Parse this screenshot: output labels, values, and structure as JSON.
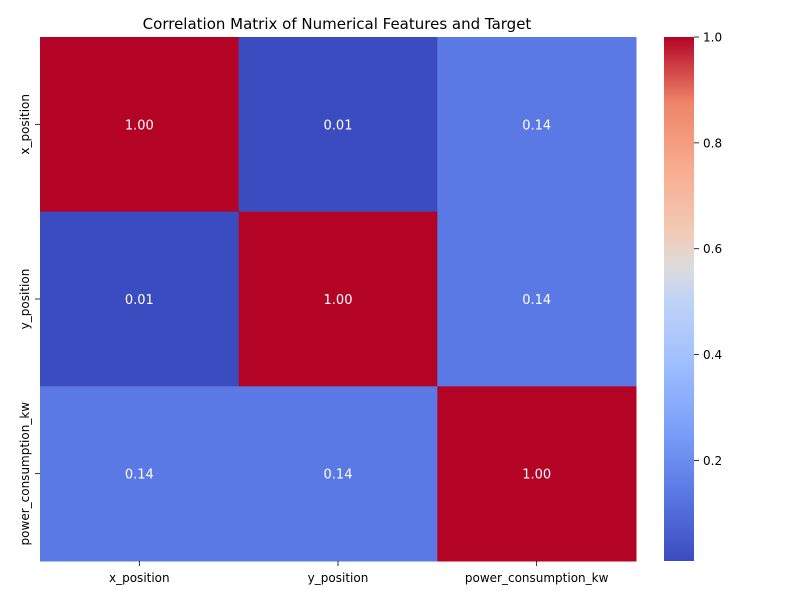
{
  "chart_data": {
    "type": "heatmap",
    "title": "Correlation Matrix of Numerical Features and Target",
    "xlabel": "",
    "ylabel": "",
    "x_categories": [
      "x_position",
      "y_position",
      "power_consumption_kw"
    ],
    "y_categories": [
      "x_position",
      "y_position",
      "power_consumption_kw"
    ],
    "values": [
      [
        1.0,
        0.01,
        0.14
      ],
      [
        0.01,
        1.0,
        0.14
      ],
      [
        0.14,
        0.14,
        1.0
      ]
    ],
    "cell_labels": [
      [
        "1.00",
        "0.01",
        "0.14"
      ],
      [
        "0.01",
        "1.00",
        "0.14"
      ],
      [
        "0.14",
        "0.14",
        "1.00"
      ]
    ],
    "colormap": "coolwarm",
    "colorbar": {
      "min": 0.01,
      "max": 1.0,
      "ticks": [
        0.2,
        0.4,
        0.6,
        0.8,
        1.0
      ],
      "tick_labels": [
        "0.2",
        "0.4",
        "0.6",
        "0.8",
        "1.0"
      ]
    }
  }
}
